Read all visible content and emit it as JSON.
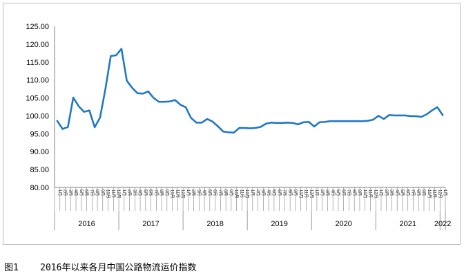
{
  "caption": {
    "figure_label": "图1",
    "title": "2016年以来各月中国公路物流运价指数"
  },
  "chart_data": {
    "type": "line",
    "title": "",
    "xlabel": "",
    "ylabel": "",
    "ylim": [
      80,
      125
    ],
    "y_ticks": [
      "80.00",
      "85.00",
      "90.00",
      "95.00",
      "100.00",
      "105.00",
      "110.00",
      "115.00",
      "120.00",
      "125.00"
    ],
    "grid": false,
    "legend": "none",
    "line_color": "#1f77c8",
    "years": [
      {
        "label": "2016",
        "months": 12
      },
      {
        "label": "2017",
        "months": 12
      },
      {
        "label": "2018",
        "months": 12
      },
      {
        "label": "2019",
        "months": 12
      },
      {
        "label": "2020",
        "months": 12
      },
      {
        "label": "2021",
        "months": 12
      },
      {
        "label": "2022",
        "months": 1
      }
    ],
    "month_labels": [
      "1月",
      "2月",
      "3月",
      "4月",
      "5月",
      "6月",
      "7月",
      "8月",
      "9月",
      "10月",
      "11月",
      "12月"
    ],
    "series": [
      {
        "values": [
          98.6,
          96.3,
          96.9,
          105.1,
          102.7,
          101.1,
          101.5,
          96.8,
          99.5,
          107.5,
          116.7,
          116.9,
          118.7,
          109.8,
          107.8,
          106.3,
          106.2,
          106.8,
          105.0,
          103.9,
          103.9,
          104.0,
          104.4,
          103.1,
          102.4,
          99.4,
          98.1,
          98.1,
          99.1,
          98.4,
          97.1,
          95.6,
          95.4,
          95.3,
          96.6,
          96.6,
          96.5,
          96.6,
          96.9,
          97.8,
          98.1,
          98.0,
          98.0,
          98.1,
          98.0,
          97.6,
          98.2,
          98.3,
          97.0,
          98.2,
          98.3,
          98.5,
          98.5,
          98.5,
          98.5,
          98.5,
          98.5,
          98.5,
          98.6,
          98.9,
          100.0,
          99.1,
          100.2,
          100.1,
          100.1,
          100.1,
          99.9,
          99.9,
          99.7,
          100.4,
          101.5,
          102.4,
          100.2
        ]
      }
    ]
  }
}
